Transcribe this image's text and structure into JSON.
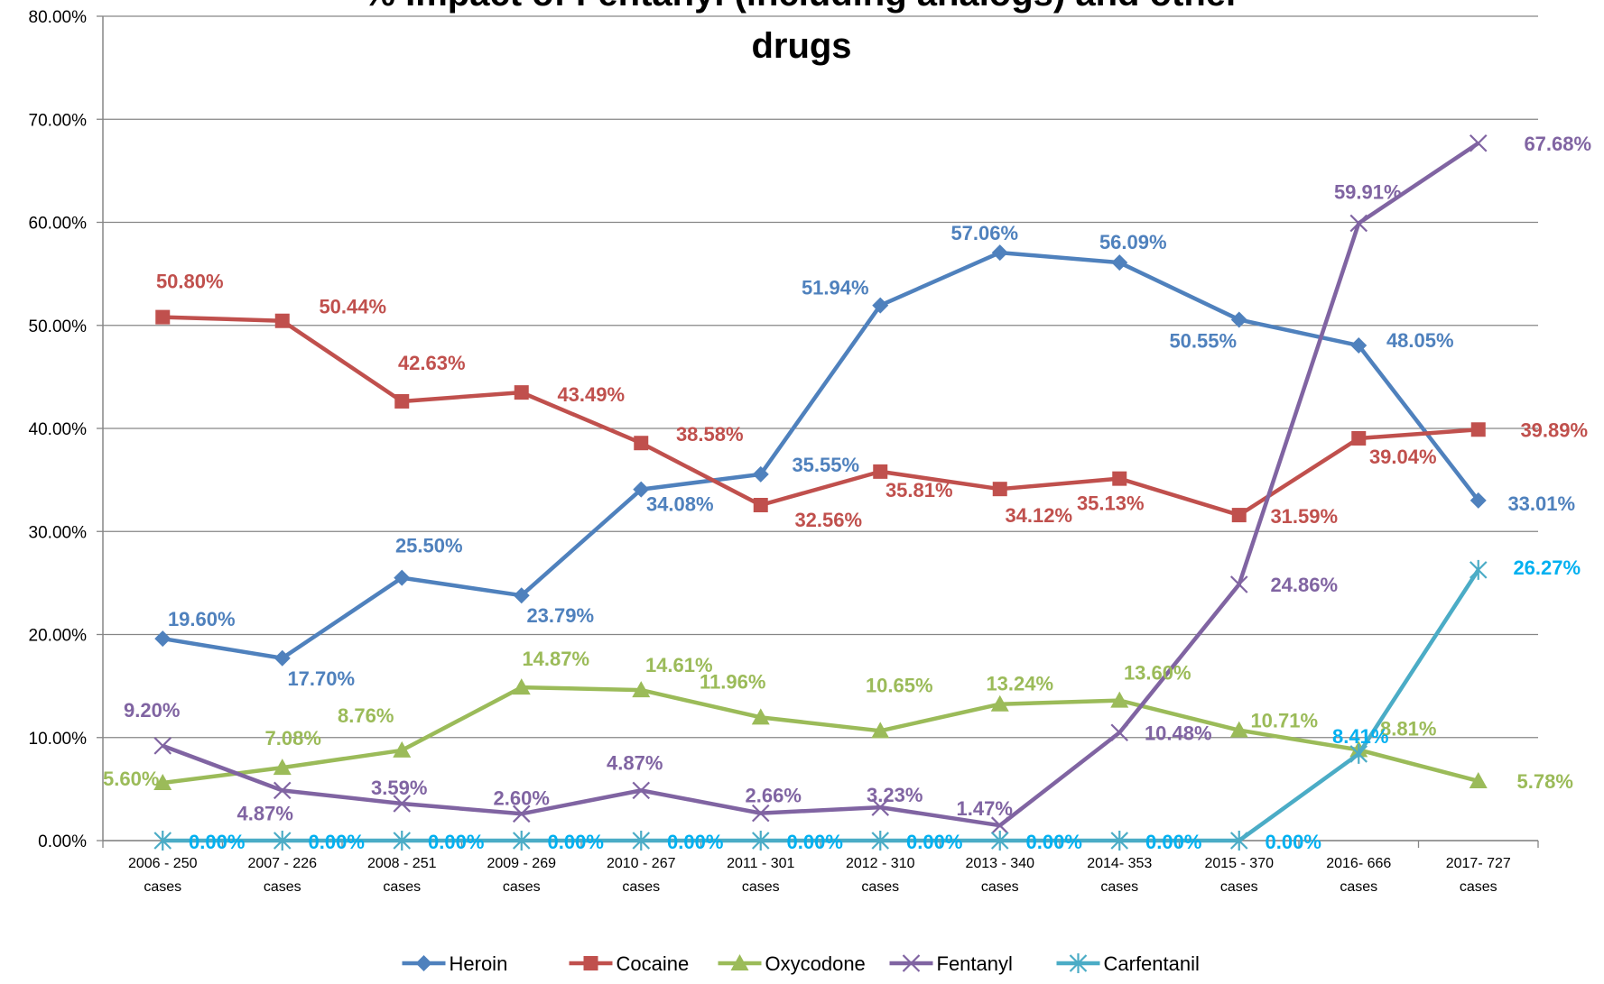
{
  "chart_data": {
    "type": "line",
    "title_lines": [
      "% Impact of Fentanyl (including analogs) and other",
      "drugs"
    ],
    "xlabel": "",
    "ylabel": "",
    "ylim": [
      0,
      80
    ],
    "y_ticks": [
      0,
      10,
      20,
      30,
      40,
      50,
      60,
      70,
      80
    ],
    "y_tick_labels": [
      "0.00%",
      "10.00%",
      "20.00%",
      "30.00%",
      "40.00%",
      "50.00%",
      "60.00%",
      "70.00%",
      "80.00%"
    ],
    "grid": true,
    "legend_position": "bottom",
    "categories": [
      [
        "2006 - 250",
        "cases"
      ],
      [
        "2007 - 226",
        "cases"
      ],
      [
        "2008 - 251",
        "cases"
      ],
      [
        "2009 - 269",
        "cases"
      ],
      [
        "2010 - 267",
        "cases"
      ],
      [
        "2011 - 301",
        "cases"
      ],
      [
        "2012 - 310",
        "cases"
      ],
      [
        "2013 - 340",
        "cases"
      ],
      [
        "2014- 353",
        "cases"
      ],
      [
        "2015 - 370",
        "cases"
      ],
      [
        "2016- 666",
        "cases"
      ],
      [
        "2017- 727",
        "cases"
      ]
    ],
    "series": [
      {
        "name": "Heroin",
        "color": "#4f81bd",
        "marker": "diamond",
        "values": [
          19.6,
          17.7,
          25.5,
          23.79,
          34.08,
          35.55,
          51.94,
          57.06,
          56.09,
          50.55,
          48.05,
          33.01
        ],
        "labels": [
          "19.60%",
          "17.70%",
          "25.50%",
          "23.79%",
          "34.08%",
          "35.55%",
          "51.94%",
          "57.06%",
          "56.09%",
          "50.55%",
          "48.05%",
          "33.01%"
        ]
      },
      {
        "name": "Cocaine",
        "color": "#c0504d",
        "marker": "square",
        "values": [
          50.8,
          50.44,
          42.63,
          43.49,
          38.58,
          32.56,
          35.81,
          34.12,
          35.13,
          31.59,
          39.04,
          39.89
        ],
        "labels": [
          "50.80%",
          "50.44%",
          "42.63%",
          "43.49%",
          "38.58%",
          "32.56%",
          "35.81%",
          "34.12%",
          "35.13%",
          "31.59%",
          "39.04%",
          "39.89%"
        ]
      },
      {
        "name": "Oxycodone",
        "color": "#9bbb59",
        "marker": "triangle",
        "values": [
          5.6,
          7.08,
          8.76,
          14.87,
          14.61,
          11.96,
          10.65,
          13.24,
          13.6,
          10.71,
          8.81,
          5.78
        ],
        "labels": [
          "5.60%",
          "7.08%",
          "8.76%",
          "14.87%",
          "14.61%",
          "11.96%",
          "10.65%",
          "13.24%",
          "13.60%",
          "10.71%",
          "8.81%",
          "5.78%"
        ]
      },
      {
        "name": "Fentanyl",
        "color": "#8064a2",
        "marker": "x",
        "values": [
          9.2,
          4.87,
          3.59,
          2.6,
          4.87,
          2.66,
          3.23,
          1.47,
          10.48,
          24.86,
          59.91,
          67.68
        ],
        "labels": [
          "9.20%",
          "4.87%",
          "3.59%",
          "2.60%",
          "4.87%",
          "2.66%",
          "3.23%",
          "1.47%",
          "10.48%",
          "24.86%",
          "59.91%",
          "67.68%"
        ]
      },
      {
        "name": "Carfentanil",
        "color": "#4bacc6",
        "label_color": "#00b0f0",
        "marker": "star",
        "values": [
          0,
          0,
          0,
          0,
          0,
          0,
          0,
          0,
          0,
          0,
          8.41,
          26.27
        ],
        "labels": [
          "0.00%",
          "0.00%",
          "0.00%",
          "0.00%",
          "0.00%",
          "0.00%",
          "0.00%",
          "0.00%",
          "0.00%",
          "0.00%",
          "8.41%",
          "26.27%"
        ]
      }
    ]
  }
}
